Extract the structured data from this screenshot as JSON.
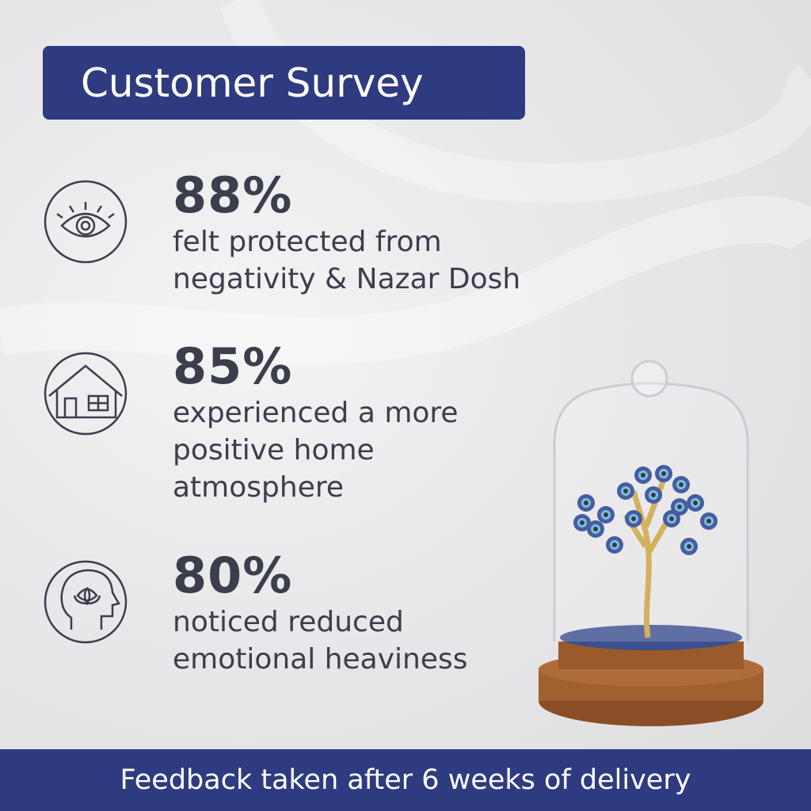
{
  "header": {
    "title": "Customer Survey"
  },
  "stats": [
    {
      "value": "88%",
      "lines": [
        "felt protected from",
        "negativity & Nazar Dosh"
      ]
    },
    {
      "value": "85%",
      "lines": [
        "experienced a more",
        "positive home",
        "atmosphere"
      ]
    },
    {
      "value": "80%",
      "lines": [
        "noticed reduced",
        "emotional heaviness"
      ]
    }
  ],
  "footer": {
    "text": "Feedback taken after 6 weeks of delivery"
  }
}
